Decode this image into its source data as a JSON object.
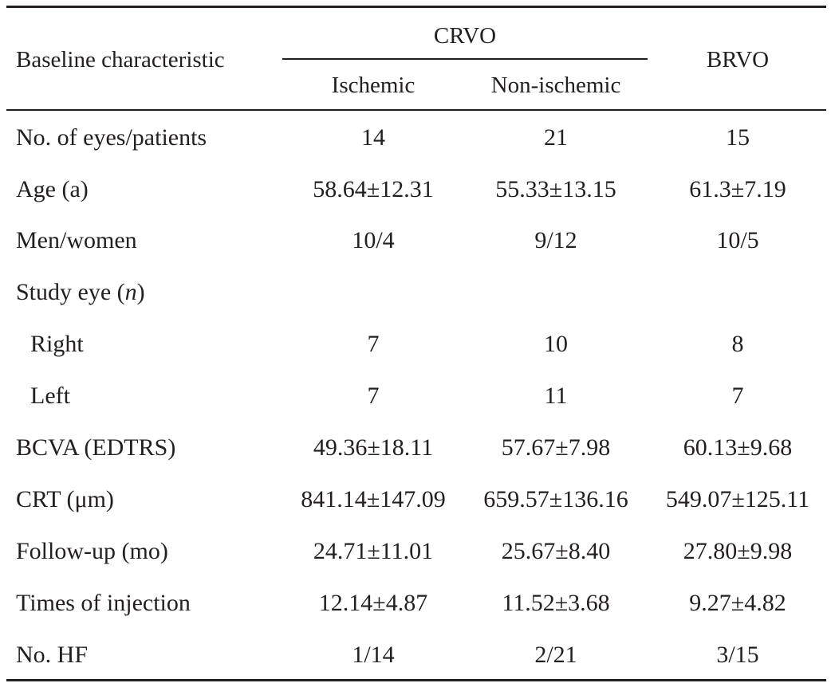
{
  "table": {
    "header": {
      "label_col": "Baseline characteristic",
      "crvo_group": "CRVO",
      "crvo_sub": [
        "Ischemic",
        "Non-ischemic"
      ],
      "brvo": "BRVO"
    },
    "rows": [
      {
        "label": "No. of eyes/patients",
        "values": [
          "14",
          "21",
          "15"
        ]
      },
      {
        "label": "Age (a)",
        "values": [
          "58.64±12.31",
          "55.33±13.15",
          "61.3±7.19"
        ]
      },
      {
        "label": "Men/women",
        "values": [
          "10/4",
          "9/12",
          "10/5"
        ]
      },
      {
        "label_prefix": "Study eye (",
        "label_italic": "n",
        "label_suffix": ")",
        "values": []
      },
      {
        "label": "Right",
        "indent": true,
        "values": [
          "7",
          "10",
          "8"
        ]
      },
      {
        "label": "Left",
        "indent": true,
        "values": [
          "7",
          "11",
          "7"
        ]
      },
      {
        "label": "BCVA (EDTRS)",
        "values": [
          "49.36±18.11",
          "57.67±7.98",
          "60.13±9.68"
        ]
      },
      {
        "label": "CRT (μm)",
        "values": [
          "841.14±147.09",
          "659.57±136.16",
          "549.07±125.11"
        ]
      },
      {
        "label": "Follow-up (mo)",
        "values": [
          "24.71±11.01",
          "25.67±8.40",
          "27.80±9.98"
        ]
      },
      {
        "label": "Times of injection",
        "values": [
          "12.14±4.87",
          "11.52±3.68",
          "9.27±4.82"
        ]
      },
      {
        "label": "No. HF",
        "values": [
          "1/14",
          "2/21",
          "3/15"
        ]
      }
    ]
  }
}
